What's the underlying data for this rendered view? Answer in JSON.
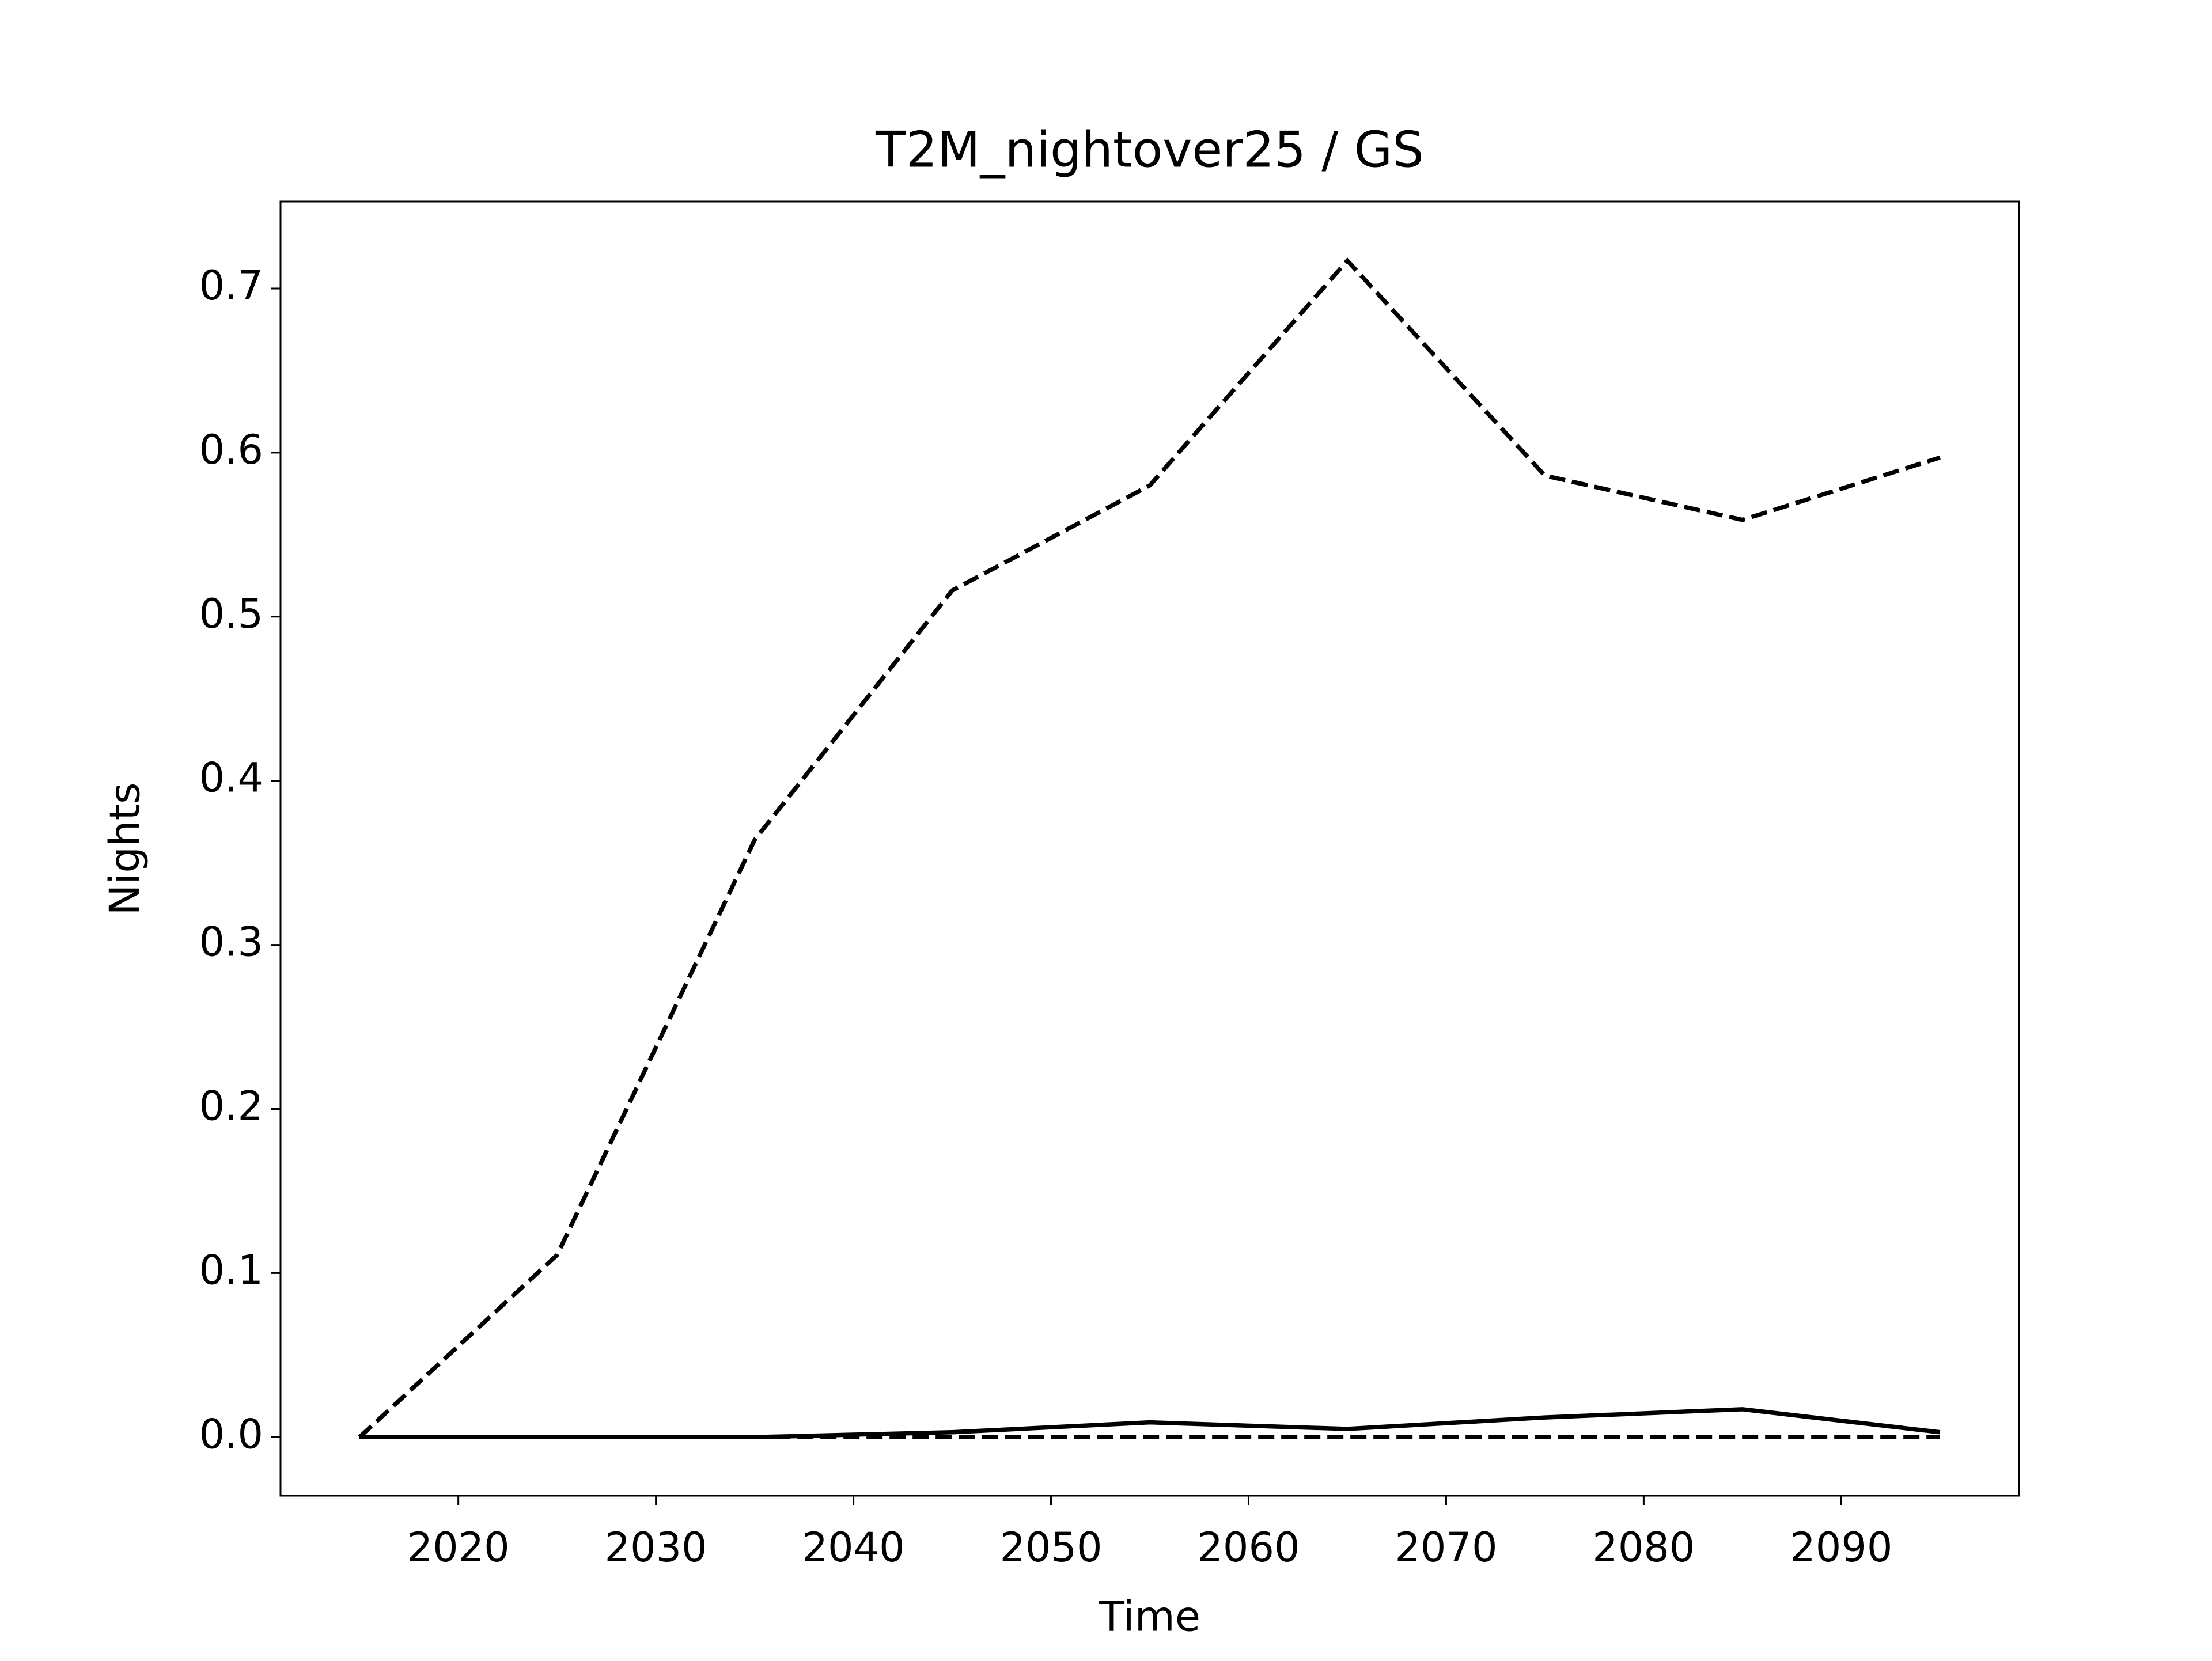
{
  "chart_data": {
    "type": "line",
    "title": "T2M_nightover25 / GS",
    "x_label": "Time",
    "y_label": "Nights",
    "x": [
      2015,
      2025,
      2035,
      2045,
      2055,
      2065,
      2075,
      2085,
      2095
    ],
    "series": [
      {
        "color": "#000000",
        "linestyle": "dashed",
        "values": [
          0,
          0.111,
          0.364,
          0.516,
          0.58,
          0.717,
          0.586,
          0.559,
          0.597
        ]
      },
      {
        "color": "#000000",
        "linestyle": "solid",
        "values": [
          0,
          0,
          0,
          0.003,
          0.009,
          0.005,
          0.012,
          0.017,
          0.003
        ]
      },
      {
        "color": "#000000",
        "linestyle": "dashed",
        "values": [
          0,
          0,
          0,
          0,
          0,
          0,
          0,
          0,
          0
        ]
      }
    ],
    "xlim": [
      2011,
      2099
    ],
    "xticks": [
      2020,
      2030,
      2040,
      2050,
      2060,
      2070,
      2080,
      2090
    ],
    "ylim": [
      -0.0357,
      0.753
    ],
    "yticks": [
      {
        "value": 0,
        "label": "0.0"
      },
      0.1,
      0.2,
      0.3,
      0.4,
      0.5,
      0.6,
      0.7
    ],
    "grid": false
  }
}
